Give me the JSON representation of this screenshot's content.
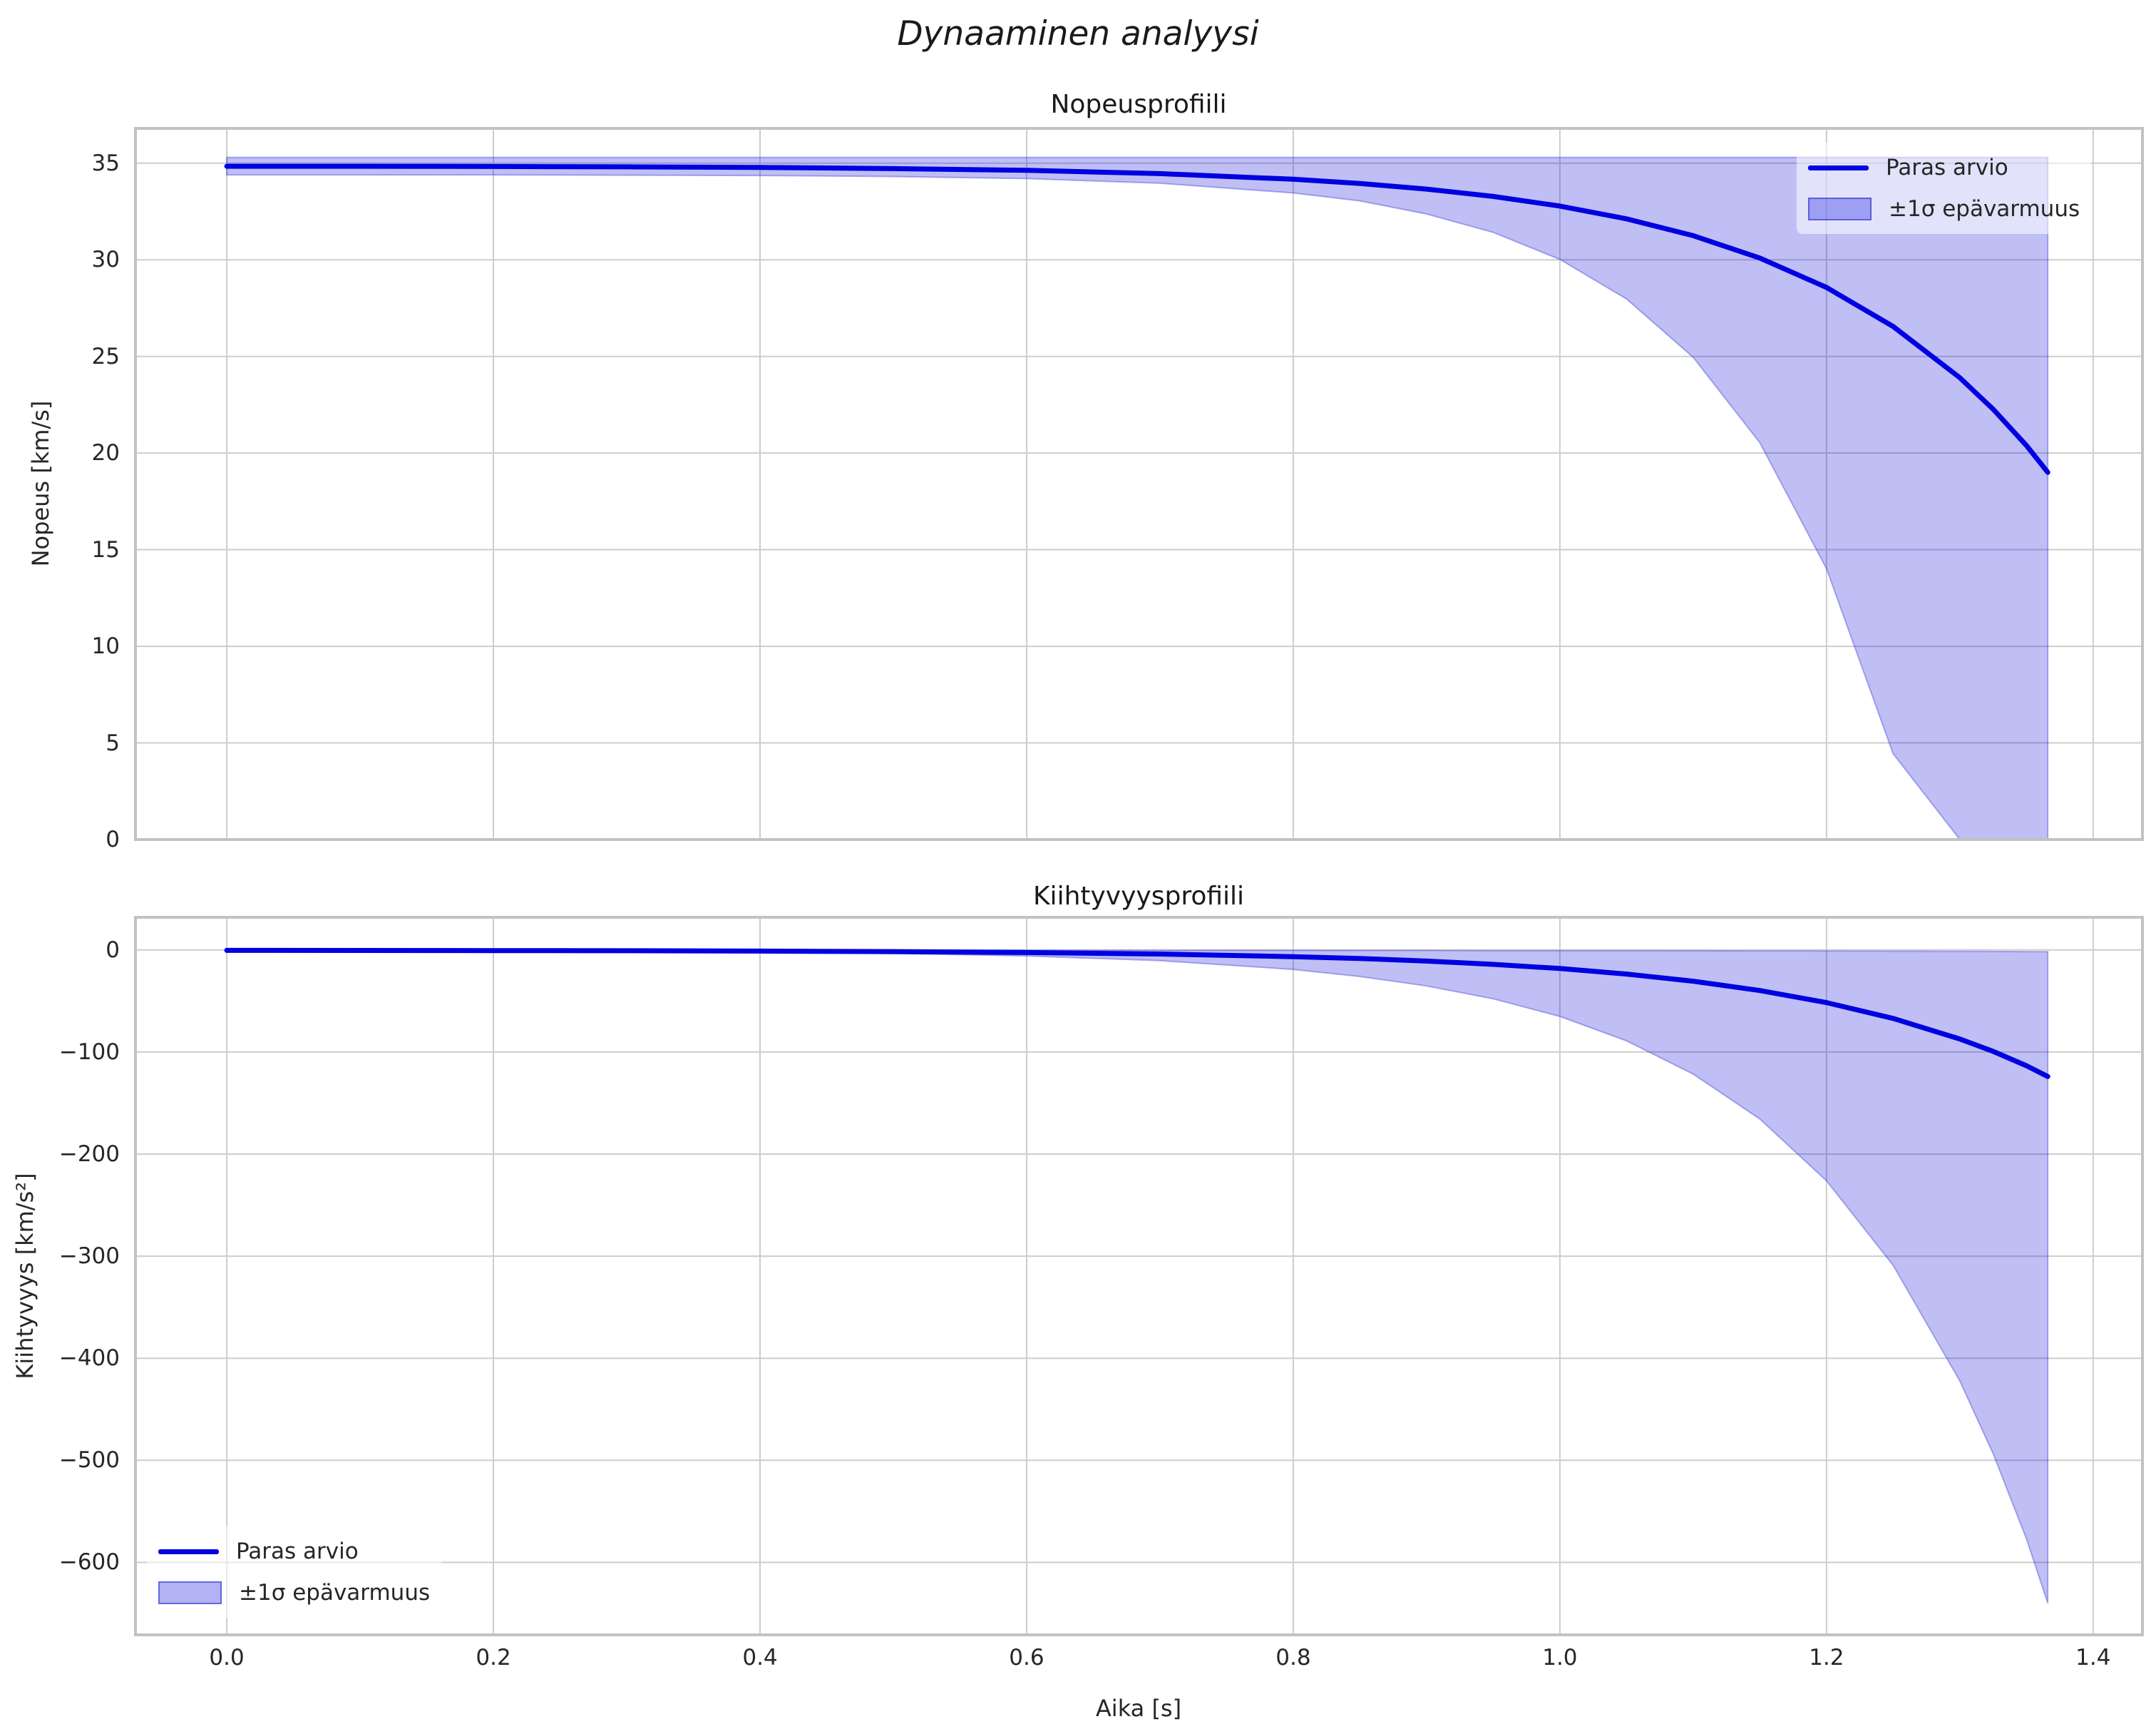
{
  "figure": {
    "suptitle": "Dynaaminen analyysi"
  },
  "colors": {
    "line": "#0000e0",
    "band_fill": "rgba(0,0,221,0.25)",
    "band_edge": "rgba(40,40,200,0.35)",
    "band_strong": "rgba(0,0,221,0.3)",
    "band_edge_strong": "rgba(40,40,200,0.55)",
    "grid": "#cdcdcd",
    "frame": "#c2c2c2",
    "text": "#262626",
    "title": "#1a1a1a",
    "legend_bg": "rgba(255,255,255,0.55)"
  },
  "subplots": [
    {
      "title": "Nopeusprofiili",
      "ylabel": "Nopeus [km/s]",
      "legend": [
        "Paras arvio",
        "±1σ epävarmuus"
      ],
      "legend_loc": "upper right"
    },
    {
      "title": "Kiihtyvyysprofiili",
      "ylabel": "Kiihtyvyys [km/s²]",
      "xlabel": "Aika [s]",
      "legend": [
        "Paras arvio",
        "±1σ epävarmuus"
      ],
      "legend_loc": "lower left"
    }
  ],
  "chart_data": [
    {
      "type": "line",
      "title": "Nopeusprofiili",
      "xlabel": "Aika [s]",
      "ylabel": "Nopeus [km/s]",
      "xlim": [
        -0.0685,
        1.437
      ],
      "ylim": [
        0,
        36.8
      ],
      "grid": true,
      "legend_position": "upper right",
      "xticks": [
        0.0,
        0.2,
        0.4,
        0.6,
        0.8,
        1.0,
        1.2,
        1.4
      ],
      "xtick_labels": [],
      "yticks": [
        0,
        5,
        10,
        15,
        20,
        25,
        30,
        35
      ],
      "ytick_labels": [
        "0",
        "5",
        "10",
        "15",
        "20",
        "25",
        "30",
        "35"
      ],
      "x": [
        0,
        0.1,
        0.2,
        0.3,
        0.4,
        0.5,
        0.6,
        0.7,
        0.8,
        0.85,
        0.9,
        0.95,
        1.0,
        1.05,
        1.1,
        1.15,
        1.2,
        1.25,
        1.3,
        1.325,
        1.35,
        1.366
      ],
      "series": [
        {
          "name": "Paras arvio",
          "role": "line",
          "values": [
            34.84,
            34.84,
            34.83,
            34.81,
            34.78,
            34.72,
            34.63,
            34.46,
            34.17,
            33.95,
            33.66,
            33.28,
            32.78,
            32.12,
            31.25,
            30.09,
            28.57,
            26.55,
            23.9,
            22.27,
            20.39,
            19.0
          ]
        },
        {
          "name": "±1σ yläraja",
          "role": "band_upper",
          "values": [
            35.3,
            35.3,
            35.3,
            35.3,
            35.3,
            35.3,
            35.3,
            35.3,
            35.3,
            35.3,
            35.3,
            35.3,
            35.3,
            35.3,
            35.3,
            35.3,
            35.3,
            35.3,
            35.3,
            35.3,
            35.3,
            35.3
          ]
        },
        {
          "name": "±1σ alaraja",
          "role": "band_lower",
          "values": [
            34.39,
            34.39,
            34.39,
            34.38,
            34.36,
            34.31,
            34.2,
            33.96,
            33.46,
            33.05,
            32.37,
            31.42,
            30.02,
            27.97,
            24.95,
            20.53,
            14.01,
            4.44,
            0,
            0,
            0,
            0
          ]
        }
      ]
    },
    {
      "type": "line",
      "title": "Kiihtyvyysprofiili",
      "xlabel": "Aika [s]",
      "ylabel": "Kiihtyvyys [km/s²]",
      "xlim": [
        -0.0685,
        1.437
      ],
      "ylim": [
        -671,
        32
      ],
      "grid": true,
      "legend_position": "lower left",
      "xticks": [
        0.0,
        0.2,
        0.4,
        0.6,
        0.8,
        1.0,
        1.2,
        1.4
      ],
      "xtick_labels": [
        "0.0",
        "0.2",
        "0.4",
        "0.6",
        "0.8",
        "1.0",
        "1.2",
        "1.4"
      ],
      "yticks": [
        0,
        -100,
        -200,
        -300,
        -400,
        -500,
        -600
      ],
      "ytick_labels": [
        "0",
        "−100",
        "−200",
        "−300",
        "−400",
        "−500",
        "−600"
      ],
      "x": [
        0,
        0.1,
        0.2,
        0.3,
        0.4,
        0.5,
        0.6,
        0.7,
        0.8,
        0.85,
        0.9,
        0.95,
        1.0,
        1.05,
        1.1,
        1.15,
        1.2,
        1.25,
        1.3,
        1.325,
        1.35,
        1.366
      ],
      "series": [
        {
          "name": "Paras arvio",
          "role": "line",
          "values": [
            -0.4,
            -0.5,
            -0.6,
            -0.8,
            -1.1,
            -1.6,
            -2.5,
            -4.0,
            -6.6,
            -8.4,
            -10.9,
            -14.1,
            -18.2,
            -23.6,
            -30.6,
            -39.8,
            -51.6,
            -67.1,
            -87.2,
            -99.4,
            -113.4,
            -124
          ]
        },
        {
          "name": "±1σ yläraja",
          "role": "band_upper",
          "values": [
            -0.2,
            -0.2,
            -0.2,
            -0.3,
            -0.3,
            -0.3,
            -0.3,
            -0.4,
            -0.4,
            -0.5,
            -0.5,
            -0.6,
            -0.6,
            -0.7,
            -0.8,
            -0.9,
            -1.0,
            -1.2,
            -1.4,
            -1.5,
            -1.6,
            -1.7
          ]
        },
        {
          "name": "±1σ alaraja",
          "role": "band_lower",
          "values": [
            -0.7,
            -0.8,
            -0.9,
            -1.3,
            -2.1,
            -3.4,
            -5.9,
            -10.5,
            -19.1,
            -26.0,
            -35.3,
            -47.9,
            -65.1,
            -89.0,
            -121.6,
            -165.7,
            -226.2,
            -309.0,
            -422.2,
            -493.6,
            -577.0,
            -640.0
          ]
        }
      ]
    }
  ]
}
